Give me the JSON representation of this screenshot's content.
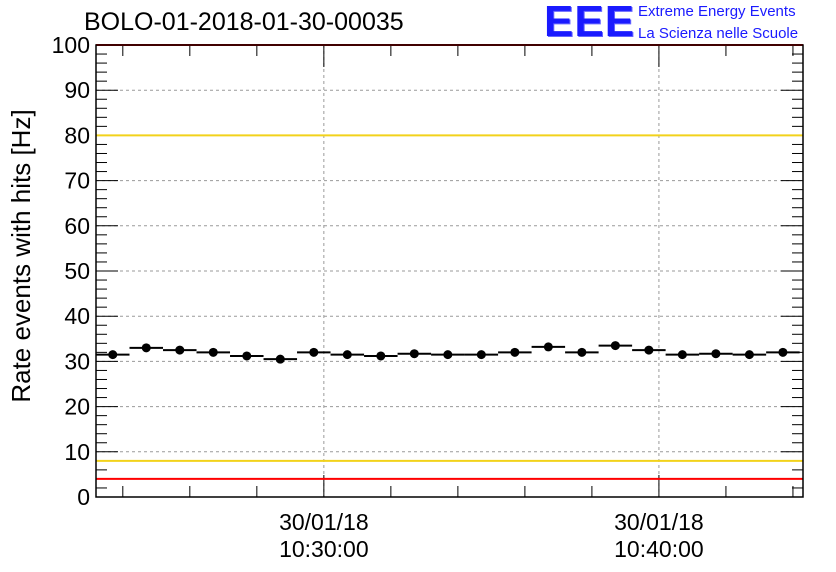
{
  "chart_data": {
    "type": "scatter",
    "title": "BOLO-01-2018-01-30-00035",
    "ylabel": "Rate events with hits [Hz]",
    "xlabel": "",
    "ylim": [
      0,
      100
    ],
    "yticks": [
      0,
      10,
      20,
      30,
      40,
      50,
      60,
      70,
      80,
      90,
      100
    ],
    "x_range_minutes": [
      23.2,
      44.3
    ],
    "x_ticks": [
      {
        "x_min": 30,
        "date": "30/01/18",
        "time": "10:30:00"
      },
      {
        "x_min": 40,
        "date": "30/01/18",
        "time": "10:40:00"
      }
    ],
    "grid": true,
    "reference_lines": [
      {
        "y": 100,
        "color": "#ff0000"
      },
      {
        "y": 80,
        "color": "#f2d21b"
      },
      {
        "y": 8,
        "color": "#f2d21b"
      },
      {
        "y": 4,
        "color": "#ff0000"
      }
    ],
    "bin_width_minutes": 1,
    "series": [
      {
        "x": [
          23.7,
          24.7,
          25.7,
          26.7,
          27.7,
          28.7,
          29.7,
          30.7,
          31.7,
          32.7,
          33.7,
          34.7,
          35.7,
          36.7,
          37.7,
          38.7,
          39.7,
          40.7,
          41.7,
          42.7,
          43.7
        ],
        "values": [
          31.5,
          33.0,
          32.5,
          32.0,
          31.2,
          30.5,
          32.0,
          31.5,
          31.2,
          31.7,
          31.5,
          31.5,
          32.0,
          33.2,
          32.0,
          33.5,
          32.5,
          31.5,
          31.7,
          31.5,
          32.0
        ]
      }
    ]
  },
  "logo": {
    "mark": "EEE",
    "line1": "Extreme Energy Events",
    "line2": "La Scienza nelle Scuole",
    "color": "#1a1aff"
  }
}
